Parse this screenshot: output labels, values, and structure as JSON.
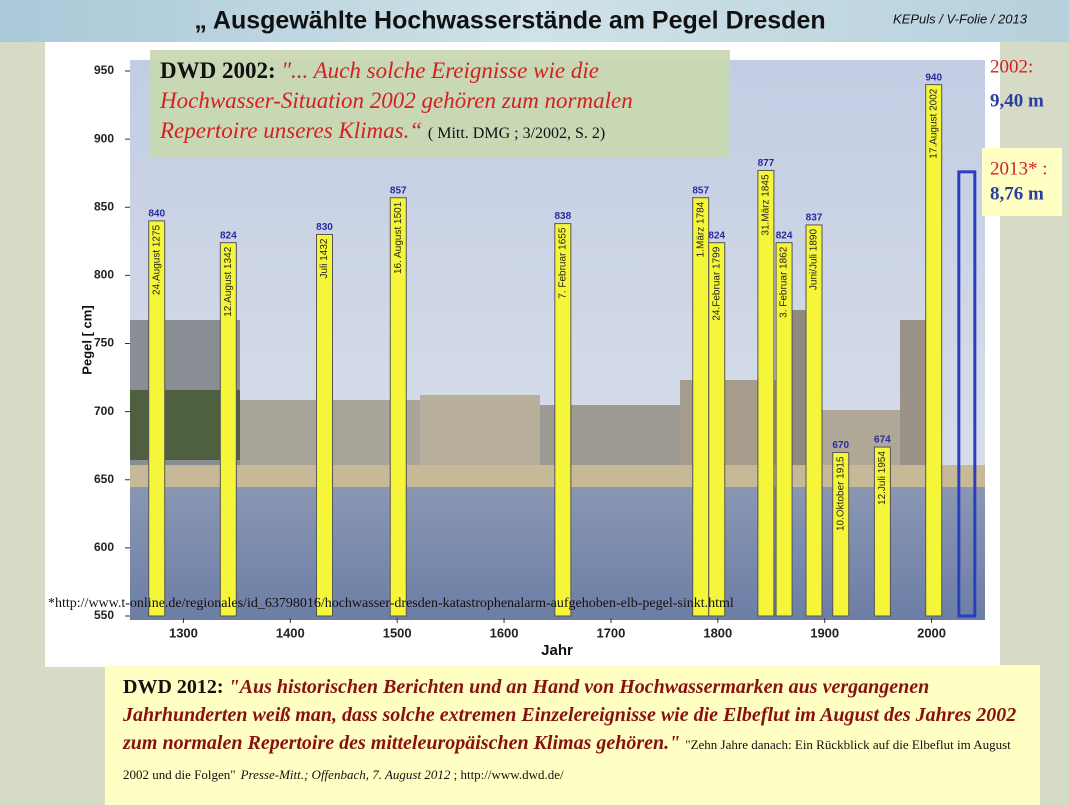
{
  "chart_data": {
    "type": "bar",
    "title": "„ Ausgewählte Hochwasserstände am Pegel Dresden",
    "credit": "KEPuls / V-Folie / 2013",
    "ylabel": "Pegel  [ cm]",
    "xlabel": "Jahr",
    "xlim": [
      1250,
      2050
    ],
    "xticks": [
      1300,
      1400,
      1500,
      1600,
      1700,
      1800,
      1900,
      2000
    ],
    "ylim": [
      550,
      950
    ],
    "yticks": [
      550,
      600,
      650,
      700,
      750,
      800,
      850,
      900,
      950
    ],
    "series": [
      {
        "color": "#f5f53a",
        "x": [
          1275,
          1342,
          1432,
          1501,
          1655,
          1784,
          1799,
          1845,
          1862,
          1890,
          1915,
          1954,
          2002
        ],
        "values": [
          840,
          824,
          830,
          857,
          838,
          857,
          824,
          877,
          824,
          837,
          670,
          674,
          940
        ],
        "labels": [
          "24.August 1275",
          "12.August 1342",
          "Juli 1432",
          "16. August 1501",
          "7. Februar 1655",
          "1.März 1784",
          "24.Februar 1799",
          "31.März 1845",
          "3. Februar 1862",
          "Juni/Juli 1890",
          "10.Oktober 1915",
          "12.Juli 1954",
          "17.August 2002"
        ]
      },
      {
        "color": "#2a3ec0",
        "x": [
          2033
        ],
        "values": [
          876
        ]
      }
    ],
    "callouts": [
      {
        "label": "2002:",
        "text": "9,40 m"
      },
      {
        "label": "2013* :",
        "text": "8,76 m"
      }
    ],
    "footnote": "*http://www.t-online.de/regionales/id_63798016/hochwasser-dresden-katastrophenalarm-aufgehoben-elb-pegel-sinkt.html",
    "quote_2002": {
      "lead": "DWD 2002:",
      "text": "\"... Auch solche Ereignisse wie die Hochwasser-Situation 2002 gehören zum normalen Repertoire unseres Klimas.“",
      "ref": "( Mitt.  DMG ; 3/2002, S. 2)"
    },
    "quote_2012": {
      "lead": "DWD 2012:",
      "text": "\"Aus historischen Berichten und an Hand von Hochwassermarken aus vergangenen Jahrhunderten weiß man, dass solche extremen Einzelereignisse wie die Elbeflut im August des Jahres 2002 zum normalen Repertoire des mitteleuropäischen Klimas gehören.\"",
      "ref": "\"Zehn Jahre danach:  Ein Rückblick auf die Elbeflut im August 2002 und die Folgen\"",
      "source": "Presse-Mitt.; Offenbach, 7. August 2012",
      "url": " ; http://www.dwd.de/"
    }
  }
}
